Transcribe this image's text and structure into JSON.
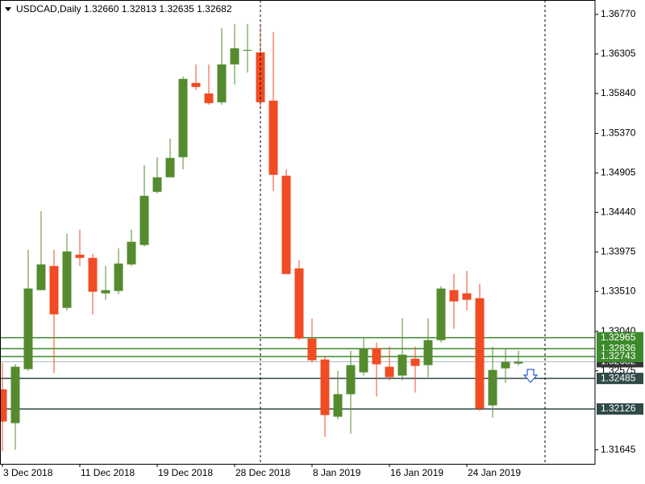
{
  "chart_data": {
    "type": "candlestick",
    "title": "USDCAD,Daily 1.32660 1.32813 1.32635 1.32682",
    "categories": [
      "3 Dec 2018",
      null,
      null,
      null,
      null,
      null,
      "11 Dec 2018",
      null,
      null,
      null,
      null,
      null,
      "19 Dec 2018",
      null,
      null,
      null,
      null,
      null,
      "28 Dec 2018",
      null,
      null,
      null,
      null,
      null,
      "8 Jan 2019",
      null,
      null,
      null,
      null,
      null,
      "16 Jan 2019",
      null,
      null,
      null,
      null,
      null,
      "24 Jan 2019",
      null,
      null,
      null,
      null
    ],
    "open": [
      1.32357,
      1.31959,
      1.32595,
      1.33525,
      1.33809,
      1.33316,
      1.33942,
      1.33904,
      1.33487,
      1.33515,
      1.33828,
      1.34056,
      1.34682,
      1.34853,
      1.3509,
      1.35964,
      1.3584,
      1.35736,
      1.36182,
      1.36343,
      1.36324,
      1.35755,
      1.34872,
      1.33781,
      1.32955,
      1.32708,
      1.32035,
      1.323,
      1.32557,
      1.32841,
      1.32623,
      1.32519,
      1.32718,
      1.32642,
      1.32936,
      1.33525,
      1.33487,
      1.3343,
      1.32168,
      1.32604,
      1.3266
    ],
    "high": [
      1.3267,
      1.32652,
      1.33999,
      1.34455,
      1.33999,
      1.34189,
      1.34236,
      1.33952,
      1.33809,
      1.34018,
      1.34236,
      1.34996,
      1.3509,
      1.35309,
      1.36039,
      1.36182,
      1.36182,
      1.36609,
      1.36656,
      1.36656,
      1.36656,
      1.36561,
      1.34948,
      1.33876,
      1.33192,
      1.32746,
      1.32576,
      1.32813,
      1.32955,
      1.32908,
      1.3286,
      1.33192,
      1.3286,
      1.33192,
      1.33572,
      1.33714,
      1.33752,
      1.33601,
      1.3286,
      1.32841,
      1.32813
    ],
    "low": [
      1.31627,
      1.31646,
      1.32576,
      1.33525,
      1.32547,
      1.33287,
      1.33809,
      1.3324,
      1.33411,
      1.33477,
      1.33809,
      1.34037,
      1.34663,
      1.34853,
      1.34948,
      1.35878,
      1.35707,
      1.35707,
      1.35945,
      1.36087,
      1.3566,
      1.34692,
      1.33714,
      1.32936,
      1.3267,
      1.31797,
      1.32006,
      1.31835,
      1.32519,
      1.32272,
      1.32462,
      1.32462,
      1.32319,
      1.325,
      1.32908,
      1.33069,
      1.33287,
      1.32101,
      1.32025,
      1.32433,
      1.32635
    ],
    "close": [
      1.31978,
      1.32623,
      1.33544,
      1.33828,
      1.3324,
      1.3398,
      1.33904,
      1.33506,
      1.33525,
      1.33838,
      1.34094,
      1.34635,
      1.34853,
      1.35081,
      1.36011,
      1.35916,
      1.35726,
      1.36182,
      1.36372,
      1.36353,
      1.35736,
      1.34882,
      1.33714,
      1.32955,
      1.32699,
      1.32054,
      1.323,
      1.32642,
      1.32841,
      1.32652,
      1.325,
      1.32765,
      1.32633,
      1.32936,
      1.33544,
      1.33392,
      1.33411,
      1.3213,
      1.32585,
      1.3268,
      1.32682
    ],
    "up_color": "#548b2e",
    "down_color": "#f04b23",
    "ylim": [
      1.3148,
      1.3694
    ],
    "yticks": [
      {
        "value": 1.3677,
        "label": "1.36770"
      },
      1.36305,
      {
        "value": 1.3584,
        "label": "1.35840"
      },
      {
        "value": 1.3537,
        "label": "1.35370"
      },
      1.34905,
      {
        "value": 1.3444,
        "label": "1.34440"
      },
      1.33975,
      {
        "value": 1.3351,
        "label": "1.33510"
      },
      {
        "value": 1.3304,
        "label": "1.33040"
      },
      1.32575,
      1.31645
    ],
    "grid": false,
    "bid": {
      "value": 1.32682,
      "color": "#a8b4c0"
    },
    "levels": [
      {
        "value": 1.32965,
        "color": "#3c8a2c"
      },
      {
        "value": 1.32836,
        "color": "#3c8a2c"
      },
      {
        "value": 1.32743,
        "color": "#3c8a2c"
      },
      {
        "value": 1.32485,
        "color": "#2f4a48"
      },
      {
        "value": 1.32126,
        "color": "#2f4a48"
      }
    ]
  }
}
